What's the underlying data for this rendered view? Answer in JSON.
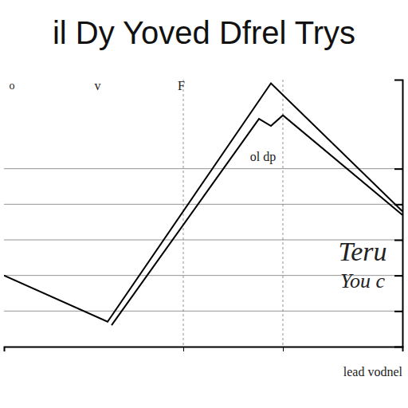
{
  "chart_data": {
    "type": "line",
    "title": "il Dy Yoved Dfrel Trys",
    "xlabel": "lead vodnel",
    "series": [
      {
        "color": "#000000",
        "line_style": "solid",
        "x": [
          0,
          2.6,
          6.7,
          10
        ],
        "values": [
          2.0,
          0.7,
          7.4,
          3.8
        ]
      },
      {
        "color": "#000000",
        "line_style": "solid",
        "x": [
          2.7,
          6.4,
          6.7,
          7.0,
          10
        ],
        "values": [
          0.6,
          6.4,
          6.2,
          6.5,
          3.7
        ]
      }
    ],
    "xlim": [
      0,
      10
    ],
    "xticks": [
      4.5,
      7
    ],
    "ylim": [
      0,
      7.5
    ],
    "yticks": [
      1,
      2,
      3,
      4,
      5
    ],
    "grid": true,
    "tick_labels": false,
    "annotations": [
      {
        "text": "o",
        "x": 0.2,
        "y": 7.3
      },
      {
        "text": "v",
        "x": 2.35,
        "y": 7.3
      },
      {
        "text": "F",
        "x": 4.45,
        "y": 7.3
      },
      {
        "text": "ol dp",
        "x": 6.5,
        "y": 5.3
      },
      {
        "text": "Teru",
        "x": 9.0,
        "y": 2.6
      },
      {
        "text": "You c",
        "x": 9.0,
        "y": 1.8
      }
    ]
  }
}
